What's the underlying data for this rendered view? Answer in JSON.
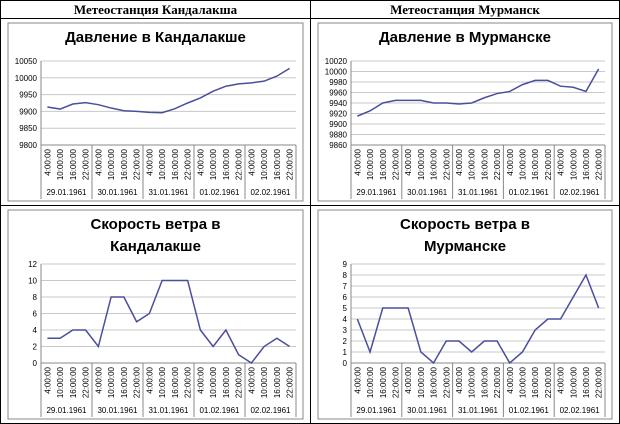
{
  "headers": [
    "Метеостанция Кандалакша",
    "Метеостанция Мурманск"
  ],
  "chart_data": [
    {
      "type": "line",
      "title": "Давление в Кандалакше",
      "color": "#4a4f9c",
      "grid": true,
      "categories": [
        "4:00:00",
        "10:00:00",
        "16:00:00",
        "22:00:00",
        "4:00:00",
        "10:00:00",
        "16:00:00",
        "22:00:00",
        "4:00:00",
        "10:00:00",
        "16:00:00",
        "22:00:00",
        "4:00:00",
        "10:00:00",
        "16:00:00",
        "22:00:00",
        "4:00:00",
        "10:00:00",
        "16:00:00",
        "22:00:00"
      ],
      "groups": [
        "29.01.1961",
        "30.01.1961",
        "31.01.1961",
        "01.02.1961",
        "02.02.1961"
      ],
      "values": [
        9913,
        9907,
        9922,
        9926,
        9920,
        9910,
        9902,
        9900,
        9897,
        9896,
        9908,
        9925,
        9940,
        9960,
        9975,
        9982,
        9985,
        9990,
        10005,
        10028
      ],
      "ylim": [
        9800,
        10050
      ],
      "yticks": [
        9800,
        9850,
        9900,
        9950,
        10000,
        10050
      ]
    },
    {
      "type": "line",
      "title": "Давление в Мурманске",
      "color": "#4a4f9c",
      "grid": true,
      "categories": [
        "4:00:00",
        "10:00:00",
        "16:00:00",
        "22:00:00",
        "4:00:00",
        "10:00:00",
        "16:00:00",
        "22:00:00",
        "4:00:00",
        "10:00:00",
        "16:00:00",
        "22:00:00",
        "4:00:00",
        "10:00:00",
        "16:00:00",
        "22:00:00",
        "4:00:00",
        "10:00:00",
        "16:00:00",
        "22:00:00"
      ],
      "groups": [
        "29.01.1961",
        "30.01.1961",
        "31.01.1961",
        "01.02.1961",
        "02.02.1961"
      ],
      "values": [
        9915,
        9925,
        9940,
        9945,
        9945,
        9945,
        9940,
        9940,
        9938,
        9940,
        9950,
        9958,
        9962,
        9975,
        9983,
        9983,
        9972,
        9970,
        9962,
        10005
      ],
      "ylim": [
        9860,
        10020
      ],
      "yticks": [
        9860,
        9880,
        9900,
        9920,
        9940,
        9960,
        9980,
        10000,
        10020
      ]
    },
    {
      "type": "line",
      "title": "Скорость ветра в Кандалакше",
      "color": "#4a4f9c",
      "grid": true,
      "categories": [
        "4:00:00",
        "10:00:00",
        "16:00:00",
        "22:00:00",
        "4:00:00",
        "10:00:00",
        "16:00:00",
        "22:00:00",
        "4:00:00",
        "10:00:00",
        "16:00:00",
        "22:00:00",
        "4:00:00",
        "10:00:00",
        "16:00:00",
        "22:00:00",
        "4:00:00",
        "10:00:00",
        "16:00:00",
        "22:00:00"
      ],
      "groups": [
        "29.01.1961",
        "30.01.1961",
        "31.01.1961",
        "01.02.1961",
        "02.02.1961"
      ],
      "values": [
        3,
        3,
        4,
        4,
        2,
        8,
        8,
        5,
        6,
        10,
        10,
        10,
        4,
        2,
        4,
        1,
        0,
        2,
        3,
        2
      ],
      "ylim": [
        0,
        12
      ],
      "yticks": [
        0,
        2,
        4,
        6,
        8,
        10,
        12
      ]
    },
    {
      "type": "line",
      "title": "Скорость ветра в Мурманске",
      "color": "#4a4f9c",
      "grid": true,
      "categories": [
        "4:00:00",
        "10:00:00",
        "16:00:00",
        "22:00:00",
        "4:00:00",
        "10:00:00",
        "16:00:00",
        "22:00:00",
        "4:00:00",
        "10:00:00",
        "16:00:00",
        "22:00:00",
        "4:00:00",
        "10:00:00",
        "16:00:00",
        "22:00:00",
        "4:00:00",
        "10:00:00",
        "16:00:00",
        "22:00:00"
      ],
      "groups": [
        "29.01.1961",
        "30.01.1961",
        "31.01.1961",
        "01.02.1961",
        "02.02.1961"
      ],
      "values": [
        4,
        1,
        5,
        5,
        5,
        1,
        0,
        2,
        2,
        1,
        2,
        2,
        0,
        1,
        3,
        4,
        4,
        6,
        8,
        5
      ],
      "ylim": [
        0,
        9
      ],
      "yticks": [
        0,
        1,
        2,
        3,
        4,
        5,
        6,
        7,
        8,
        9
      ]
    }
  ]
}
